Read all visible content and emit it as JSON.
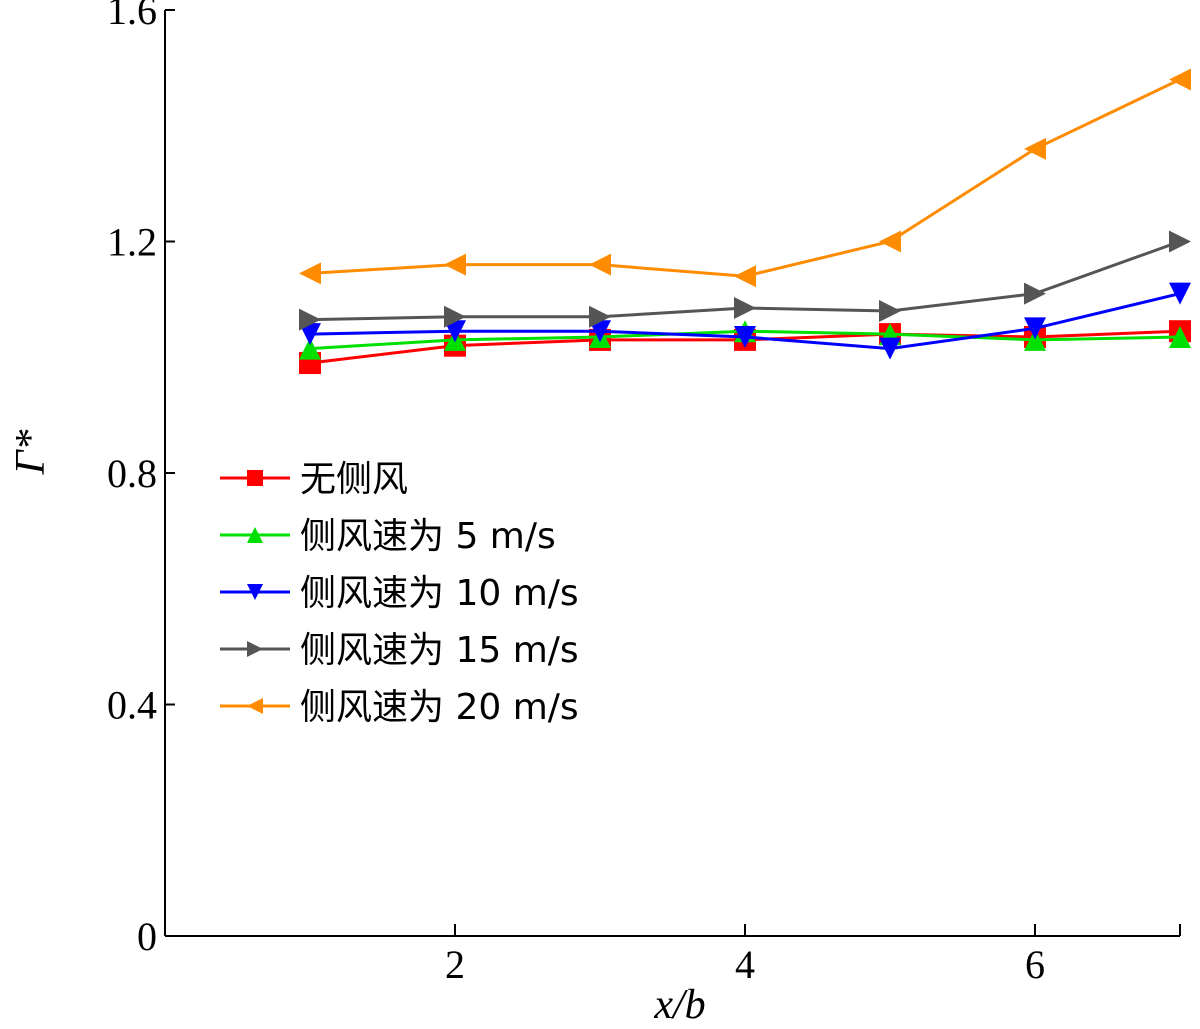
{
  "chart_data": {
    "type": "line",
    "xlabel": "x/b",
    "ylabel": "Γ*",
    "xlim": [
      0,
      7
    ],
    "ylim": [
      0,
      1.6
    ],
    "xticks": [
      2,
      4,
      6
    ],
    "yticks": [
      0,
      0.4,
      0.8,
      1.2,
      1.6
    ],
    "ytick_labels": [
      "0",
      "0.4",
      "0.8",
      "1.2",
      "1.6"
    ],
    "grid": false,
    "legend_position": "middle-left",
    "x": [
      1,
      2,
      3,
      4,
      5,
      6,
      7
    ],
    "series": [
      {
        "name": "无侧风",
        "color": "#ff0000",
        "marker": "square",
        "values": [
          0.99,
          1.02,
          1.03,
          1.03,
          1.04,
          1.035,
          1.045
        ]
      },
      {
        "name": "侧风速为 5 m/s",
        "color": "#00e000",
        "marker": "triangle-up",
        "values": [
          1.015,
          1.03,
          1.035,
          1.045,
          1.04,
          1.03,
          1.035
        ]
      },
      {
        "name": "侧风速为 10 m/s",
        "color": "#0000ff",
        "marker": "triangle-down",
        "values": [
          1.04,
          1.045,
          1.045,
          1.035,
          1.015,
          1.05,
          1.11
        ]
      },
      {
        "name": "侧风速为 15 m/s",
        "color": "#555555",
        "marker": "triangle-right",
        "values": [
          1.065,
          1.07,
          1.07,
          1.085,
          1.08,
          1.11,
          1.2
        ]
      },
      {
        "name": "侧风速为 20 m/s",
        "color": "#ff8c00",
        "marker": "triangle-left",
        "values": [
          1.145,
          1.16,
          1.16,
          1.14,
          1.2,
          1.36,
          1.48
        ]
      }
    ]
  }
}
